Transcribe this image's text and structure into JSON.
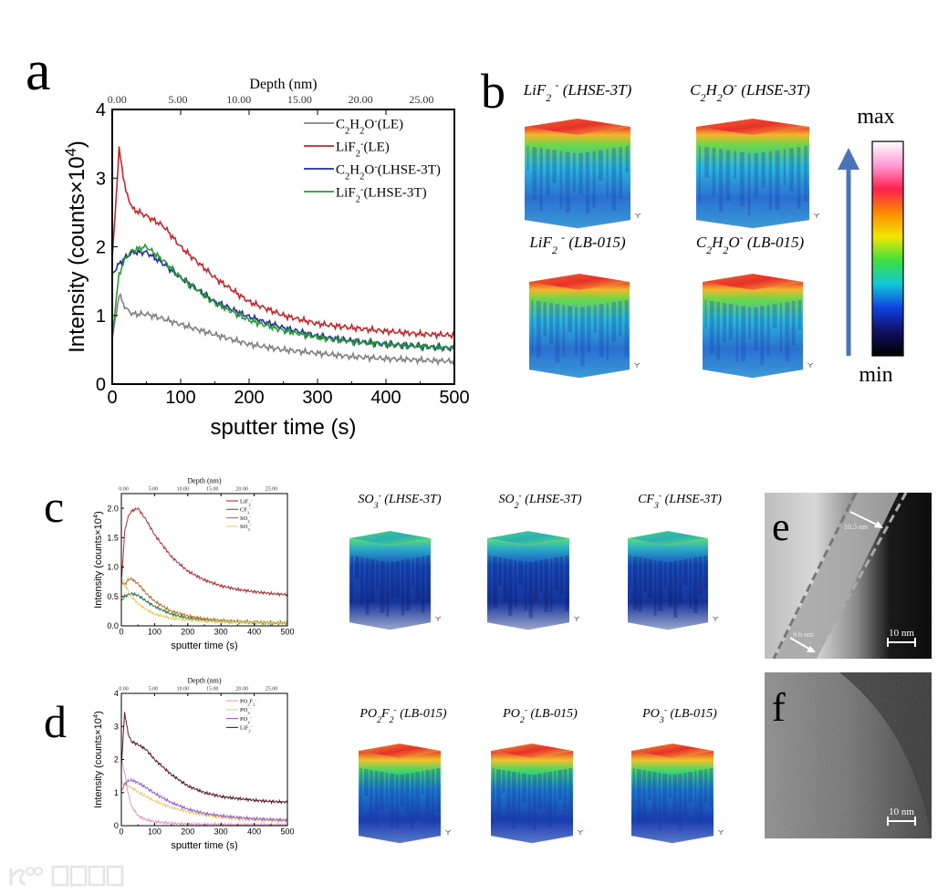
{
  "panel_letters": {
    "a": "a",
    "b": "b",
    "c": "c",
    "d": "d",
    "e": "e",
    "f": "f"
  },
  "watermark": "大数跨境",
  "chart_data": [
    {
      "id": "a",
      "type": "line",
      "xlabel": "sputter time (s)",
      "ylabel_parts": [
        [
          "Intensity (counts×10",
          ""
        ],
        [
          "4",
          "sup"
        ],
        [
          ")",
          ""
        ]
      ],
      "xlim": [
        0,
        500
      ],
      "ylim": [
        0,
        4
      ],
      "x_ticks": [
        "0",
        "100",
        "200",
        "300",
        "400",
        "500"
      ],
      "y_ticks": [
        "0",
        "1",
        "2",
        "3",
        "4"
      ],
      "top_axis": {
        "label": "Depth (nm)",
        "ticks": [
          "0.00",
          "5.00",
          "10.00",
          "15.00",
          "20.00",
          "25.00"
        ],
        "nm_per_s": 0.0562,
        "offset_s": 7
      },
      "legend_position": "top-right",
      "x": [
        0,
        10,
        20,
        30,
        50,
        75,
        100,
        150,
        200,
        250,
        300,
        350,
        400,
        450,
        500
      ],
      "series": [
        {
          "name_parts": [
            [
              "C",
              ""
            ],
            [
              "2",
              "sub"
            ],
            [
              "H",
              ""
            ],
            [
              "2",
              "sub"
            ],
            [
              "O",
              ""
            ],
            [
              "-",
              "sup"
            ],
            [
              "(LE)",
              ""
            ]
          ],
          "color": "#808080",
          "values": [
            0.65,
            1.3,
            1.1,
            1.02,
            1.02,
            0.95,
            0.87,
            0.72,
            0.58,
            0.5,
            0.45,
            0.4,
            0.37,
            0.35,
            0.33
          ]
        },
        {
          "name_parts": [
            [
              "LiF",
              ""
            ],
            [
              "2",
              "sub"
            ],
            [
              "-",
              "sup"
            ],
            [
              "(LE)",
              ""
            ]
          ],
          "color": "#c0272d",
          "values": [
            1.8,
            3.42,
            2.8,
            2.55,
            2.45,
            2.3,
            2.0,
            1.55,
            1.2,
            1.0,
            0.88,
            0.82,
            0.77,
            0.73,
            0.71
          ]
        },
        {
          "name_parts": [
            [
              "C",
              ""
            ],
            [
              "2",
              "sub"
            ],
            [
              "H",
              ""
            ],
            [
              "2",
              "sub"
            ],
            [
              "O",
              ""
            ],
            [
              "-",
              "sup"
            ],
            [
              "(LHSE-3T)",
              ""
            ]
          ],
          "color": "#1f2f96",
          "values": [
            1.6,
            1.75,
            1.85,
            1.92,
            1.92,
            1.75,
            1.55,
            1.2,
            0.98,
            0.82,
            0.7,
            0.63,
            0.58,
            0.55,
            0.52
          ]
        },
        {
          "name_parts": [
            [
              "LiF",
              ""
            ],
            [
              "2",
              "sub"
            ],
            [
              "-",
              "sup"
            ],
            [
              "(LHSE-3T)",
              ""
            ]
          ],
          "color": "#2a9a35",
          "values": [
            0.7,
            1.6,
            1.85,
            1.95,
            2.0,
            1.8,
            1.55,
            1.18,
            0.93,
            0.78,
            0.68,
            0.62,
            0.58,
            0.55,
            0.52
          ]
        }
      ]
    },
    {
      "id": "c",
      "type": "line",
      "xlabel": "sputter time (s)",
      "ylabel_parts": [
        [
          "Intensity (counts×10",
          ""
        ],
        [
          "4",
          "sup"
        ],
        [
          ")",
          ""
        ]
      ],
      "xlim": [
        0,
        500
      ],
      "ylim": [
        0,
        2.25
      ],
      "x_ticks": [
        "0",
        "100",
        "200",
        "300",
        "400",
        "500"
      ],
      "y_ticks": [
        "0.0",
        "0.5",
        "1.0",
        "1.5",
        "2.0"
      ],
      "top_axis": {
        "label": "Depth (nm)",
        "ticks": [
          "0.00",
          "5.00",
          "10.00",
          "15.00",
          "20.00",
          "25.00"
        ],
        "nm_per_s": 0.0562,
        "offset_s": 7
      },
      "legend_position": "top-right",
      "x": [
        0,
        10,
        20,
        30,
        50,
        75,
        100,
        150,
        200,
        250,
        300,
        350,
        400,
        450,
        500
      ],
      "series": [
        {
          "name_parts": [
            [
              "LiF",
              ""
            ],
            [
              "2",
              "sub"
            ],
            [
              "-",
              "sup"
            ]
          ],
          "color": "#a8343c",
          "values": [
            0.7,
            1.6,
            1.85,
            1.95,
            2.0,
            1.8,
            1.55,
            1.18,
            0.93,
            0.78,
            0.68,
            0.62,
            0.58,
            0.55,
            0.53
          ]
        },
        {
          "name_parts": [
            [
              "CF",
              ""
            ],
            [
              "3",
              "sub"
            ],
            [
              "-",
              "sup"
            ]
          ],
          "color": "#2f7a4a",
          "values": [
            0.42,
            0.5,
            0.53,
            0.55,
            0.52,
            0.42,
            0.33,
            0.2,
            0.13,
            0.1,
            0.08,
            0.07,
            0.06,
            0.05,
            0.05
          ]
        },
        {
          "name_parts": [
            [
              "SO",
              ""
            ],
            [
              "2",
              "sub"
            ],
            [
              "-",
              "sup"
            ]
          ],
          "color": "#b5762c",
          "values": [
            0.75,
            0.7,
            0.78,
            0.8,
            0.72,
            0.55,
            0.42,
            0.25,
            0.17,
            0.12,
            0.09,
            0.07,
            0.06,
            0.05,
            0.05
          ]
        },
        {
          "name_parts": [
            [
              "SO",
              ""
            ],
            [
              "3",
              "sub"
            ],
            [
              "-",
              "sup"
            ]
          ],
          "color": "#e3cf6a",
          "values": [
            0.85,
            0.7,
            0.6,
            0.5,
            0.38,
            0.28,
            0.2,
            0.13,
            0.1,
            0.08,
            0.07,
            0.06,
            0.06,
            0.05,
            0.05
          ]
        }
      ]
    },
    {
      "id": "d",
      "type": "line",
      "xlabel": "sputter time (s)",
      "ylabel_parts": [
        [
          "Intensity (counts×10",
          ""
        ],
        [
          "4",
          "sup"
        ],
        [
          ")",
          ""
        ]
      ],
      "xlim": [
        0,
        500
      ],
      "ylim": [
        0,
        4
      ],
      "x_ticks": [
        "0",
        "100",
        "200",
        "300",
        "400",
        "500"
      ],
      "y_ticks": [
        "0",
        "1",
        "2",
        "3",
        "4"
      ],
      "top_axis": {
        "label": "Depth (nm)",
        "ticks": [
          "0.00",
          "5.00",
          "10.00",
          "15.00",
          "20.00",
          "25.00"
        ],
        "nm_per_s": 0.0562,
        "offset_s": 7
      },
      "legend_position": "top-right",
      "x": [
        0,
        10,
        20,
        30,
        50,
        75,
        100,
        150,
        200,
        250,
        300,
        350,
        400,
        450,
        500
      ],
      "series": [
        {
          "name_parts": [
            [
              "PO",
              ""
            ],
            [
              "2",
              "sub"
            ],
            [
              "F",
              ""
            ],
            [
              "2",
              "sub"
            ],
            [
              "-",
              "sup"
            ]
          ],
          "color": "#d9a0c4",
          "values": [
            2.0,
            1.6,
            1.0,
            0.6,
            0.3,
            0.18,
            0.12,
            0.07,
            0.05,
            0.04,
            0.04,
            0.03,
            0.03,
            0.03,
            0.03
          ]
        },
        {
          "name_parts": [
            [
              "PO",
              ""
            ],
            [
              "3",
              "sub"
            ],
            [
              "-",
              "sup"
            ]
          ],
          "color": "#e2d27a",
          "values": [
            1.3,
            1.25,
            1.2,
            1.15,
            1.02,
            0.88,
            0.75,
            0.55,
            0.42,
            0.32,
            0.25,
            0.2,
            0.17,
            0.15,
            0.14
          ]
        },
        {
          "name_parts": [
            [
              "PO",
              ""
            ],
            [
              "2",
              "sub"
            ],
            [
              "-",
              "sup"
            ]
          ],
          "color": "#9a62c8",
          "values": [
            1.05,
            1.25,
            1.35,
            1.38,
            1.3,
            1.15,
            0.98,
            0.7,
            0.5,
            0.37,
            0.3,
            0.25,
            0.21,
            0.19,
            0.17
          ]
        },
        {
          "name_parts": [
            [
              "LiF",
              ""
            ],
            [
              "2",
              "sub"
            ],
            [
              "-",
              "sup"
            ]
          ],
          "color": "#5a1a2a",
          "values": [
            1.8,
            3.42,
            2.8,
            2.55,
            2.45,
            2.3,
            2.0,
            1.55,
            1.2,
            1.0,
            0.88,
            0.82,
            0.77,
            0.73,
            0.71
          ]
        }
      ]
    }
  ],
  "tof_cubes": [
    {
      "panel": "b",
      "colormap": "rainbow-high",
      "label_parts": [
        [
          "LiF",
          ""
        ],
        [
          "2",
          "sub"
        ],
        [
          " ",
          ""
        ],
        [
          "-",
          "sup"
        ],
        [
          " (LHSE-3T)",
          ""
        ]
      ]
    },
    {
      "panel": "b",
      "colormap": "rainbow-high",
      "label_parts": [
        [
          "C",
          ""
        ],
        [
          "2",
          "sub"
        ],
        [
          "H",
          ""
        ],
        [
          "2",
          "sub"
        ],
        [
          "O",
          ""
        ],
        [
          "-",
          "sup"
        ],
        [
          " (LHSE-3T)",
          ""
        ]
      ]
    },
    {
      "panel": "b",
      "colormap": "rainbow-high",
      "label_parts": [
        [
          "LiF",
          ""
        ],
        [
          "2",
          "sub"
        ],
        [
          " ",
          ""
        ],
        [
          "-",
          "sup"
        ],
        [
          " (LB-015)",
          ""
        ]
      ]
    },
    {
      "panel": "b",
      "colormap": "rainbow-high",
      "label_parts": [
        [
          "C",
          ""
        ],
        [
          "2",
          "sub"
        ],
        [
          "H",
          ""
        ],
        [
          "2",
          "sub"
        ],
        [
          "O",
          ""
        ],
        [
          "-",
          "sup"
        ],
        [
          " (LB-015)",
          ""
        ]
      ]
    },
    {
      "panel": "c",
      "colormap": "low-green",
      "label_parts": [
        [
          "SO",
          ""
        ],
        [
          "3",
          "sub"
        ],
        [
          "-",
          "sup"
        ],
        [
          " (LHSE-3T)",
          ""
        ]
      ]
    },
    {
      "panel": "c",
      "colormap": "low-green",
      "label_parts": [
        [
          "SO",
          ""
        ],
        [
          "2",
          "sub"
        ],
        [
          "-",
          "sup"
        ],
        [
          " (LHSE-3T)",
          ""
        ]
      ]
    },
    {
      "panel": "c",
      "colormap": "low-green",
      "label_parts": [
        [
          "CF",
          ""
        ],
        [
          "3",
          "sub"
        ],
        [
          "-",
          "sup"
        ],
        [
          " (LHSE-3T)",
          ""
        ]
      ]
    },
    {
      "panel": "d",
      "colormap": "red-top",
      "label_parts": [
        [
          "PO",
          ""
        ],
        [
          "2",
          "sub"
        ],
        [
          "F",
          ""
        ],
        [
          "2",
          "sub"
        ],
        [
          "-",
          "sup"
        ],
        [
          " (LB-015)",
          ""
        ]
      ]
    },
    {
      "panel": "d",
      "colormap": "red-top",
      "label_parts": [
        [
          "PO",
          ""
        ],
        [
          "2",
          "sub"
        ],
        [
          "-",
          "sup"
        ],
        [
          " (LB-015)",
          ""
        ]
      ]
    },
    {
      "panel": "d",
      "colormap": "red-top",
      "label_parts": [
        [
          "PO",
          ""
        ],
        [
          "3",
          "sub"
        ],
        [
          "-",
          "sup"
        ],
        [
          " (LB-015)",
          ""
        ]
      ]
    }
  ],
  "colorbar": {
    "max_label": "max",
    "min_label": "min",
    "colors": [
      "#ffffff",
      "#ff9ad5",
      "#ff2050",
      "#ff8a00",
      "#f2e600",
      "#3de03d",
      "#10c8d8",
      "#1040e0",
      "#101060",
      "#000000"
    ]
  },
  "tem": {
    "e": {
      "thickness_top": "10.5 nm",
      "thickness_bottom": "9.6 nm",
      "scale_bar": "10 nm"
    },
    "f": {
      "scale_bar": "10 nm"
    }
  }
}
